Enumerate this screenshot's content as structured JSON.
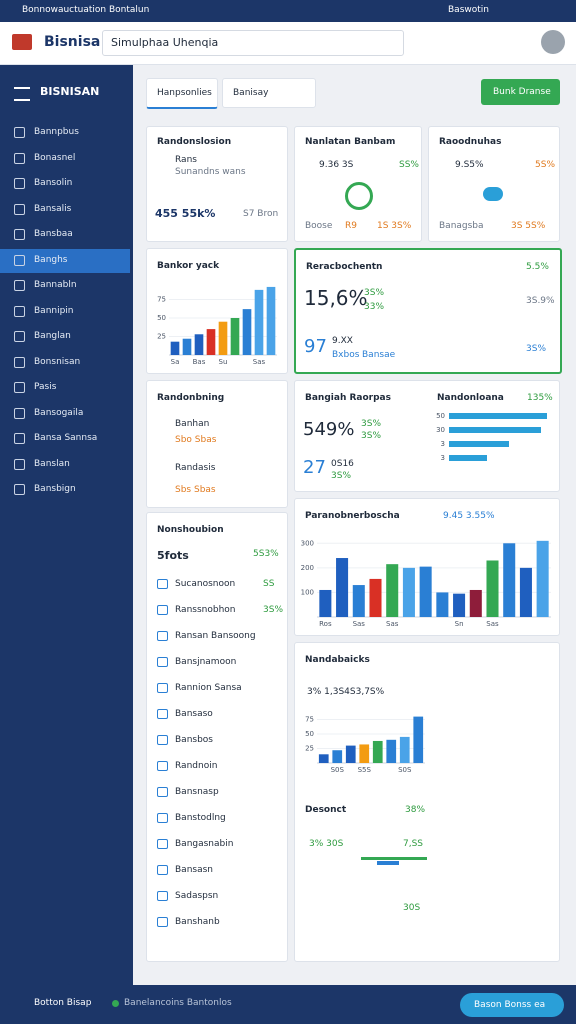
{
  "status_bar": {
    "title": "Bonnowauctuation Bontalun",
    "right": "Baswotin"
  },
  "header": {
    "brand": "Bisnisa",
    "search": "Simulphaa Uhenqia"
  },
  "sidebar": {
    "title": "BISNISAN",
    "active": 5,
    "items": [
      "Bannpbus",
      "Bonasnel",
      "Bansolin",
      "Bansalis",
      "Bansbaa",
      "Banghs",
      "Bannabln",
      "Bannipin",
      "Banglan",
      "Bonsnisan",
      "Pasis",
      "Bansogaila",
      "Bansa Sannsa",
      "Banslan",
      "Bansbign"
    ]
  },
  "toolbar": {
    "tabs": [
      "Hanpsonlies",
      "Banisay"
    ],
    "button": "Bunk Dranse"
  },
  "card1": {
    "title": "Randonslosion",
    "name": "Rans",
    "sub": "Sunandns wans",
    "value": "455 55k%",
    "right": "S7 Bron"
  },
  "card2": {
    "title": "Nanlatan Banbam",
    "value": "9.36 3S",
    "pct": "SS%",
    "foot": [
      "Boose",
      "R9",
      "1S 3S%"
    ]
  },
  "card3": {
    "title": "Raoodnuhas",
    "value": "9.S5%",
    "pct": "5S%",
    "foot": [
      "Banagsba",
      "3S 5S%"
    ]
  },
  "highlight": {
    "title": "Reracbochentn",
    "pct": "5.5%",
    "big": "15,6%",
    "a": "3S%",
    "b": "33%",
    "c": "3S.9%",
    "num": "97",
    "num_sub": "9.XX",
    "lbl": "Bxbos",
    "lbl2": "Bansae",
    "d": "3S%"
  },
  "list_card": {
    "title": "Randonbning",
    "rows": [
      {
        "label": "Banhan",
        "sub": "Sbo Sbas"
      },
      {
        "label": "Randasis",
        "sub": "Sbs Sbas"
      }
    ]
  },
  "kpi_card": {
    "title": "Bangiah Raorpas",
    "big": "549%",
    "a": "3S%",
    "b": "3S%",
    "num": "27",
    "num_sub": "0S16",
    "c": "3S%",
    "title2": "Nandonloana",
    "pct2": "135%"
  },
  "long_card": {
    "title": "Nonshoubion",
    "sub": "5fots",
    "pct": "5S3%",
    "rows": [
      {
        "label": "Sucanosnoon",
        "value": "SS"
      },
      {
        "label": "Ranssnobhon",
        "value": "3S%"
      },
      {
        "label": "Ransan Bansoong"
      },
      {
        "label": "Bansjnamoon"
      },
      {
        "label": "Rannion Sansa"
      },
      {
        "label": "Bansaso"
      },
      {
        "label": "Bansbos"
      },
      {
        "label": "Randnoin"
      },
      {
        "label": "Bansnasp"
      },
      {
        "label": "Banstodlng"
      },
      {
        "label": "Bangasnabin"
      },
      {
        "label": "Bansasn"
      },
      {
        "label": "Sadaspsn"
      },
      {
        "label": "Banshanb"
      }
    ]
  },
  "chart_a": {
    "type": "bar",
    "title": "Bankor yack",
    "ylim": [
      0,
      100
    ],
    "yticks": [
      25,
      50,
      75
    ],
    "categories": [
      "Sa",
      null,
      "Bas",
      null,
      "Su",
      null,
      null,
      "Sas",
      null
    ],
    "values": [
      18,
      22,
      28,
      35,
      45,
      50,
      62,
      88,
      92
    ],
    "colors": [
      "#1f5fbf",
      "#2a7fd4",
      "#1f5fbf",
      "#d93025",
      "#f39c12",
      "#34a853",
      "#2a7fd4",
      "#4aa3e8",
      "#4aa3e8"
    ]
  },
  "chart_b": {
    "type": "bar",
    "title": "Paranobnerboscha",
    "pct": "9.45 3.55%",
    "ylim": [
      0,
      350
    ],
    "yticks": [
      100,
      200,
      300
    ],
    "categories": [
      "Ros",
      null,
      "Sas",
      null,
      "Sas",
      null,
      null,
      null,
      "Sn",
      null,
      "Sas",
      null,
      null,
      null
    ],
    "values": [
      110,
      240,
      130,
      155,
      215,
      200,
      205,
      100,
      95,
      110,
      230,
      300,
      200,
      310
    ],
    "colors": [
      "#1f5fbf",
      "#1f5fbf",
      "#2a7fd4",
      "#d93025",
      "#34a853",
      "#4aa3e8",
      "#2a7fd4",
      "#2a7fd4",
      "#1f5fbf",
      "#8e1d3a",
      "#34a853",
      "#2a7fd4",
      "#1f5fbf",
      "#4aa3e8"
    ]
  },
  "chart_c": {
    "type": "bar",
    "title": "Nandabaicks",
    "note": "3% 1,3S4S3,7S%",
    "ylim": [
      0,
      100
    ],
    "yticks": [
      25,
      50,
      75
    ],
    "categories": [
      null,
      "S0S",
      null,
      "S5S",
      null,
      null,
      "S0S",
      null
    ],
    "values": [
      15,
      22,
      30,
      32,
      38,
      40,
      45,
      80
    ],
    "colors": [
      "#1f5fbf",
      "#2a7fd4",
      "#1f5fbf",
      "#f39c12",
      "#34a853",
      "#2a7fd4",
      "#4aa3e8",
      "#2a7fd4"
    ]
  },
  "chart_d": {
    "type": "hbar",
    "xlim": [
      0,
      100
    ],
    "categories": [
      "50",
      "30",
      "3",
      "3"
    ],
    "values": [
      98,
      92,
      60,
      38
    ],
    "color": "#2a9fd8"
  },
  "desonct": {
    "title": "Desonct",
    "pct": "38%",
    "labels": [
      "3% 30S",
      "7,SS",
      "30S"
    ]
  },
  "bottom": {
    "title": "Botton Bisap",
    "status": "Banelancoins Bantonlos",
    "button": "Bason Bonss ea"
  }
}
